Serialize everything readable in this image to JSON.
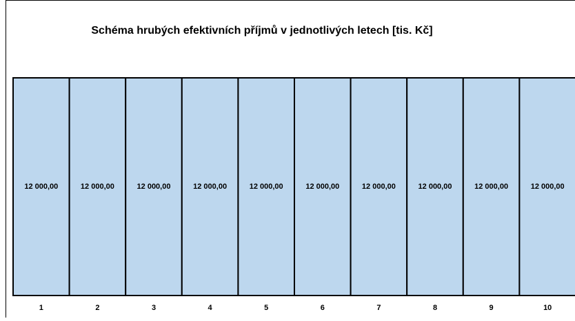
{
  "chart_data": {
    "type": "bar",
    "title": "Schéma hrubých efektivních příjmů v jednotlivých letech [tis. Kč]",
    "categories": [
      "1",
      "2",
      "3",
      "4",
      "5",
      "6",
      "7",
      "8",
      "9",
      "10"
    ],
    "values": [
      12000,
      12000,
      12000,
      12000,
      12000,
      12000,
      12000,
      12000,
      12000,
      12000
    ],
    "value_labels": [
      "12 000,00",
      "12 000,00",
      "12 000,00",
      "12 000,00",
      "12 000,00",
      "12 000,00",
      "12 000,00",
      "12 000,00",
      "12 000,00",
      "12 000,00"
    ],
    "color": "#bdd7ee",
    "ylim": [
      0,
      12000
    ]
  }
}
